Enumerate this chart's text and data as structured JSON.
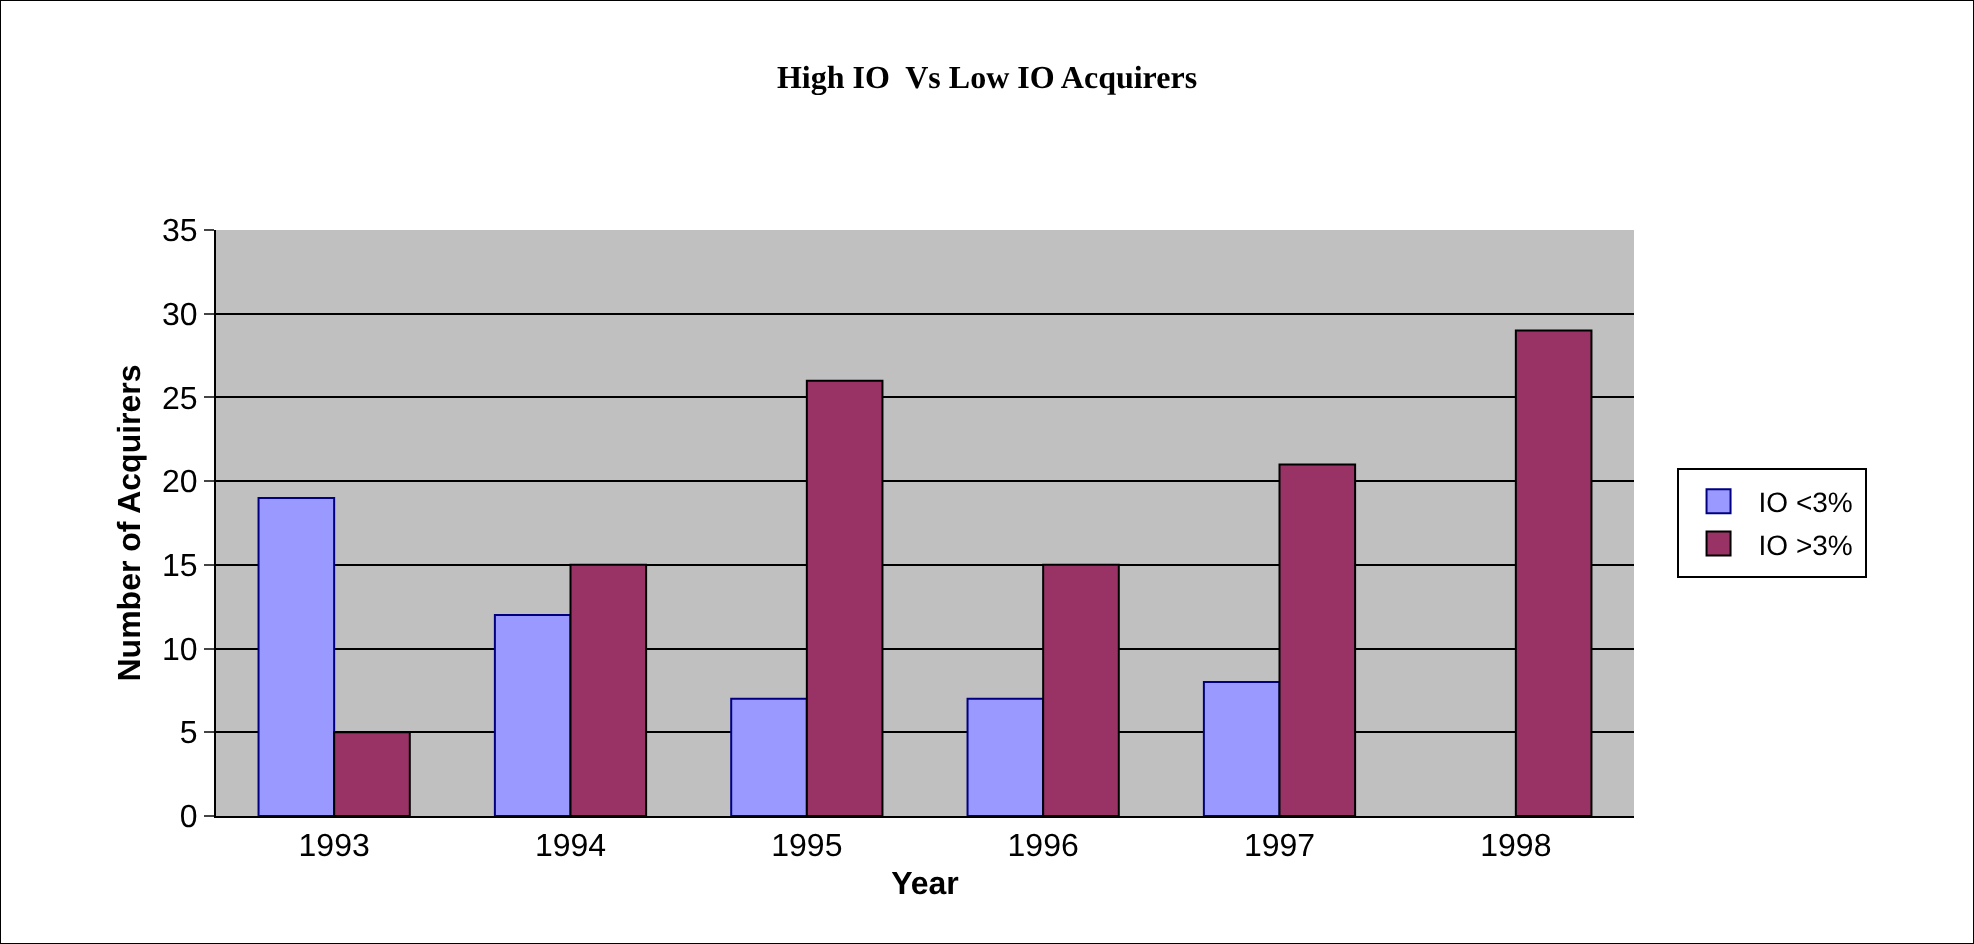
{
  "chart_data": {
    "type": "bar",
    "title": "High IO  Vs Low IO Acquirers",
    "xlabel": "Year",
    "ylabel": "Number of Acquirers",
    "categories": [
      "1993",
      "1994",
      "1995",
      "1996",
      "1997",
      "1998"
    ],
    "series": [
      {
        "name": "IO <3%",
        "color": "#9999ff",
        "values": [
          19,
          12,
          7,
          7,
          8,
          null
        ]
      },
      {
        "name": "IO >3%",
        "color": "#993366",
        "values": [
          5,
          15,
          26,
          15,
          21,
          29
        ]
      }
    ],
    "ylim": [
      0,
      35
    ],
    "yticks": [
      0,
      5,
      10,
      15,
      20,
      25,
      30,
      35
    ],
    "grid": "y",
    "legend": "right"
  }
}
